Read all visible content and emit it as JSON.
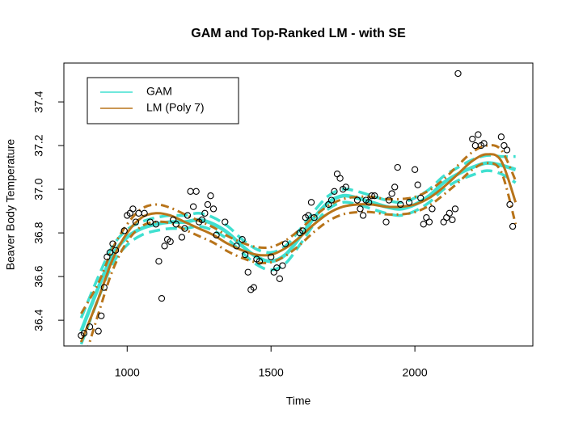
{
  "chart_data": {
    "type": "scatter",
    "title": "GAM and Top-Ranked LM - with SE",
    "xlabel": "Time",
    "ylabel": "Beaver Body Temperature",
    "xlim": [
      780,
      2410
    ],
    "ylim": [
      36.282,
      37.578
    ],
    "xticks": [
      1000,
      1500,
      2000
    ],
    "yticks": [
      36.4,
      36.6,
      36.8,
      {
        "value": 37,
        "label": "37.0"
      },
      37.2,
      37.4
    ],
    "legend_position": "top-left",
    "point_color": "#000000",
    "x": [
      840,
      850,
      870,
      900,
      910,
      920,
      930,
      940,
      950,
      960,
      990,
      1000,
      1010,
      1020,
      1030,
      1040,
      1060,
      1080,
      1100,
      1110,
      1120,
      1130,
      1140,
      1150,
      1160,
      1170,
      1190,
      1200,
      1210,
      1220,
      1230,
      1240,
      1250,
      1260,
      1270,
      1280,
      1290,
      1300,
      1310,
      1340,
      1380,
      1400,
      1410,
      1420,
      1430,
      1440,
      1450,
      1460,
      1500,
      1510,
      1520,
      1530,
      1540,
      1550,
      1600,
      1610,
      1620,
      1630,
      1640,
      1650,
      1700,
      1710,
      1720,
      1730,
      1740,
      1750,
      1760,
      1800,
      1810,
      1820,
      1830,
      1840,
      1850,
      1860,
      1900,
      1910,
      1920,
      1930,
      1940,
      1950,
      1980,
      2000,
      2010,
      2020,
      2030,
      2040,
      2050,
      2060,
      2100,
      2110,
      2120,
      2130,
      2140,
      2150,
      2200,
      2210,
      2220,
      2230,
      2240,
      2300,
      2310,
      2320,
      2330,
      2340
    ],
    "values": [
      36.33,
      36.34,
      36.37,
      36.35,
      36.42,
      36.55,
      36.69,
      36.71,
      36.75,
      36.72,
      36.81,
      36.88,
      36.89,
      36.91,
      36.85,
      36.89,
      36.89,
      36.85,
      36.84,
      36.67,
      36.5,
      36.74,
      36.77,
      36.76,
      36.86,
      36.84,
      36.78,
      36.82,
      36.88,
      36.99,
      36.92,
      36.99,
      36.85,
      36.86,
      36.89,
      36.93,
      36.97,
      36.91,
      36.79,
      36.85,
      36.74,
      36.77,
      36.7,
      36.62,
      36.54,
      36.55,
      36.68,
      36.67,
      36.69,
      36.62,
      36.64,
      36.59,
      36.65,
      36.75,
      36.8,
      36.81,
      36.87,
      36.88,
      36.94,
      36.87,
      36.93,
      36.95,
      36.99,
      37.07,
      37.05,
      37,
      37.01,
      36.95,
      36.91,
      36.88,
      36.95,
      36.94,
      36.97,
      36.97,
      36.85,
      36.95,
      36.98,
      37.01,
      37.1,
      36.93,
      36.94,
      37.09,
      37.02,
      36.96,
      36.84,
      36.87,
      36.85,
      36.91,
      36.85,
      36.87,
      36.89,
      36.86,
      36.91,
      37.53,
      37.23,
      37.2,
      37.25,
      37.2,
      37.21,
      37.24,
      37.2,
      37.18,
      36.93,
      36.83
    ],
    "curve_x": [
      840,
      900,
      950,
      1000,
      1050,
      1100,
      1150,
      1200,
      1250,
      1300,
      1350,
      1400,
      1450,
      1500,
      1550,
      1600,
      1650,
      1700,
      1750,
      1800,
      1850,
      1900,
      1950,
      2000,
      2050,
      2100,
      2150,
      2200,
      2250,
      2300,
      2350
    ],
    "series": [
      {
        "name": "GAM",
        "color": "#40E0D0",
        "values": [
          36.35,
          36.55,
          36.7,
          36.78,
          36.82,
          36.84,
          36.85,
          36.85,
          36.86,
          36.84,
          36.8,
          36.74,
          36.69,
          36.67,
          36.7,
          36.78,
          36.87,
          36.94,
          36.97,
          36.96,
          36.94,
          36.92,
          36.91,
          36.93,
          36.97,
          37.03,
          37.07,
          37.1,
          37.12,
          37.11,
          37.09
        ],
        "upper": [
          36.41,
          36.6,
          36.74,
          36.815,
          36.85,
          36.87,
          36.88,
          36.88,
          36.89,
          36.87,
          36.83,
          36.77,
          36.725,
          36.71,
          36.74,
          36.815,
          36.9,
          36.97,
          37,
          36.99,
          36.97,
          36.95,
          36.94,
          36.96,
          37,
          37.06,
          37.1,
          37.135,
          37.155,
          37.15,
          37.15
        ],
        "lower": [
          36.29,
          36.5,
          36.66,
          36.745,
          36.79,
          36.81,
          36.82,
          36.82,
          36.83,
          36.81,
          36.77,
          36.71,
          36.655,
          36.63,
          36.66,
          36.745,
          36.84,
          36.91,
          36.94,
          36.93,
          36.91,
          36.89,
          36.88,
          36.9,
          36.94,
          37,
          37.04,
          37.065,
          37.085,
          37.07,
          37.03
        ]
      },
      {
        "name": "LM (Poly 7)",
        "color": "#B8741A",
        "values": [
          36.3,
          36.5,
          36.68,
          36.8,
          36.87,
          36.89,
          36.88,
          36.85,
          36.82,
          36.79,
          36.75,
          36.72,
          36.7,
          36.7,
          36.73,
          36.78,
          36.84,
          36.89,
          36.92,
          36.93,
          36.93,
          36.92,
          36.92,
          36.93,
          36.96,
          37.01,
          37.07,
          37.13,
          37.16,
          37.13,
          36.94
        ],
        "upper": [
          36.43,
          36.57,
          36.73,
          36.84,
          36.91,
          36.93,
          36.915,
          36.885,
          36.855,
          36.825,
          36.785,
          36.755,
          36.735,
          36.735,
          36.765,
          36.815,
          36.875,
          36.925,
          36.955,
          36.965,
          36.965,
          36.955,
          36.955,
          36.965,
          36.995,
          37.045,
          37.11,
          37.17,
          37.2,
          37.18,
          37.04
        ],
        "lower": [
          36.17,
          36.43,
          36.63,
          36.76,
          36.83,
          36.85,
          36.845,
          36.815,
          36.785,
          36.755,
          36.715,
          36.685,
          36.665,
          36.665,
          36.695,
          36.745,
          36.805,
          36.855,
          36.885,
          36.895,
          36.895,
          36.885,
          36.885,
          36.895,
          36.925,
          36.975,
          37.03,
          37.09,
          37.12,
          37.08,
          36.84
        ]
      }
    ]
  }
}
